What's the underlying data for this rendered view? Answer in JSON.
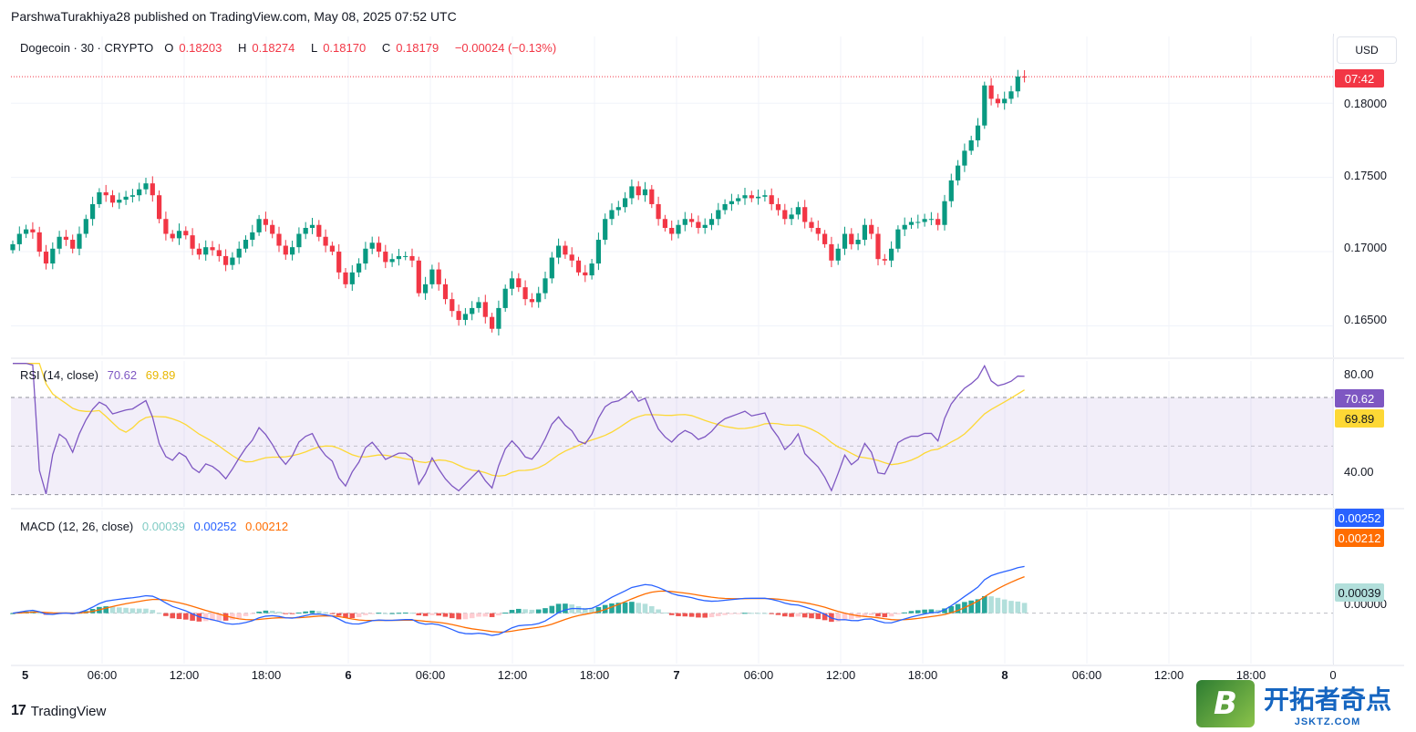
{
  "publisher": "ParshwaTurakhiya28 published on TradingView.com, May 08, 2025 07:52 UTC",
  "header": {
    "symbol": "Dogecoin · 30 · CRYPTO",
    "open_label": "O",
    "open": "0.18203",
    "high_label": "H",
    "high": "0.18274",
    "low_label": "L",
    "low": "0.18170",
    "close_label": "C",
    "close": "0.18179",
    "change": "−0.00024 (−0.13%)"
  },
  "currency_button": "USD",
  "price_axis": {
    "labels": [
      "0.18000",
      "0.17500",
      "0.17000",
      "0.16500"
    ],
    "countdown": "07:42"
  },
  "rsi": {
    "title": "RSI (14, close)",
    "value": "70.62",
    "ma_value": "69.89",
    "axis_labels": [
      "80.00",
      "40.00"
    ],
    "tag_value": "70.62",
    "tag_ma": "69.89"
  },
  "macd": {
    "title": "MACD (12, 26, close)",
    "hist_value": "0.00039",
    "macd_value": "0.00252",
    "signal_value": "0.00212",
    "axis_zero": "0.00000",
    "tag_macd": "0.00252",
    "tag_signal": "0.00212",
    "tag_hist": "0.00039"
  },
  "time_axis": [
    {
      "label": "5",
      "day": true
    },
    {
      "label": "06:00"
    },
    {
      "label": "12:00"
    },
    {
      "label": "18:00"
    },
    {
      "label": "6",
      "day": true
    },
    {
      "label": "06:00"
    },
    {
      "label": "12:00"
    },
    {
      "label": "18:00"
    },
    {
      "label": "7",
      "day": true
    },
    {
      "label": "06:00"
    },
    {
      "label": "12:00"
    },
    {
      "label": "18:00"
    },
    {
      "label": "8",
      "day": true
    },
    {
      "label": "06:00"
    },
    {
      "label": "12:00"
    },
    {
      "label": "18:00"
    },
    {
      "label": "0"
    }
  ],
  "footer": {
    "brand": "TradingView",
    "brand_mark": "17"
  },
  "watermark": {
    "badge": "B",
    "name": "开拓者奇点",
    "url": "JSKTZ.COM"
  },
  "colors": {
    "up": "#089981",
    "down": "#f23645",
    "rsi": "#7e57c2",
    "rsi_ma": "#fdd835",
    "macd": "#2962ff",
    "signal": "#ff6d00",
    "hist_up": "#26a69a",
    "hist_up_light": "#b2dfdb",
    "hist_down": "#ef5350",
    "hist_down_light": "#ffcdd2"
  },
  "chart_data": {
    "type": "candlestick",
    "price_range": [
      0.163,
      0.1845
    ],
    "candles_close": [
      0.1705,
      0.1712,
      0.1715,
      0.1713,
      0.17,
      0.1692,
      0.1702,
      0.171,
      0.1708,
      0.1702,
      0.1712,
      0.1722,
      0.1732,
      0.174,
      0.1738,
      0.1733,
      0.1735,
      0.1737,
      0.1738,
      0.1742,
      0.1746,
      0.1738,
      0.1722,
      0.1712,
      0.1709,
      0.1714,
      0.1711,
      0.1702,
      0.1698,
      0.1703,
      0.1701,
      0.1697,
      0.1691,
      0.1696,
      0.1702,
      0.1708,
      0.1713,
      0.1722,
      0.1718,
      0.1712,
      0.1704,
      0.1698,
      0.1703,
      0.1712,
      0.1716,
      0.1718,
      0.171,
      0.1704,
      0.17,
      0.1686,
      0.1678,
      0.1686,
      0.1692,
      0.1702,
      0.1706,
      0.17,
      0.1693,
      0.1695,
      0.1697,
      0.1697,
      0.1694,
      0.1672,
      0.1678,
      0.1688,
      0.1678,
      0.1668,
      0.166,
      0.1654,
      0.1658,
      0.1662,
      0.1666,
      0.1656,
      0.1648,
      0.1662,
      0.1675,
      0.1682,
      0.1676,
      0.1668,
      0.1666,
      0.1672,
      0.1682,
      0.1696,
      0.1704,
      0.1698,
      0.1694,
      0.1686,
      0.1684,
      0.1692,
      0.1708,
      0.1722,
      0.1728,
      0.173,
      0.1736,
      0.1744,
      0.1738,
      0.1742,
      0.1732,
      0.1722,
      0.1716,
      0.1712,
      0.1718,
      0.1722,
      0.172,
      0.1716,
      0.1718,
      0.1722,
      0.1728,
      0.1732,
      0.1734,
      0.1736,
      0.1738,
      0.1736,
      0.1737,
      0.1738,
      0.1732,
      0.1728,
      0.1722,
      0.1725,
      0.173,
      0.172,
      0.1716,
      0.1712,
      0.1705,
      0.1694,
      0.1702,
      0.1712,
      0.1705,
      0.1708,
      0.1718,
      0.1712,
      0.1695,
      0.1694,
      0.1702,
      0.1715,
      0.1718,
      0.172,
      0.172,
      0.1722,
      0.1722,
      0.1718,
      0.1734,
      0.1748,
      0.1758,
      0.1768,
      0.1775,
      0.1785,
      0.1812,
      0.1803,
      0.18,
      0.1803,
      0.1808,
      0.1818,
      0.18179
    ],
    "rsi_range": [
      25,
      85
    ],
    "rsi_bands": [
      70,
      50,
      30
    ],
    "macd_range": [
      -0.0028,
      0.0057
    ]
  }
}
